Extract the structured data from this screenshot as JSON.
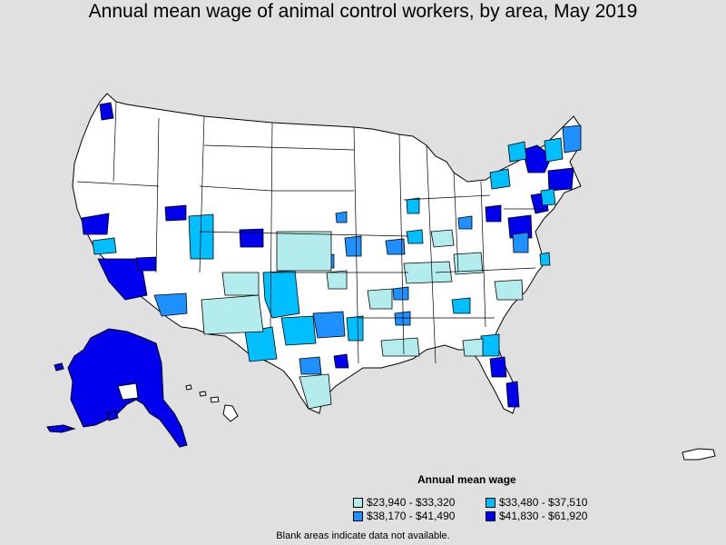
{
  "title": "Annual mean wage of animal control workers, by area, May 2019",
  "legend": {
    "title": "Annual mean wage",
    "items": [
      {
        "label": "$23,940 - $33,320",
        "color": "#b3ecec"
      },
      {
        "label": "$33,480 - $37,510",
        "color": "#00bfff"
      },
      {
        "label": "$38,170 - $41,490",
        "color": "#1e90ff"
      },
      {
        "label": "$41,830 - $61,920",
        "color": "#0000ee"
      }
    ]
  },
  "footnote": "Blank areas indicate data not available.",
  "colors": {
    "background": "#e0e0e0",
    "land": "#ffffff",
    "border": "#000000"
  }
}
